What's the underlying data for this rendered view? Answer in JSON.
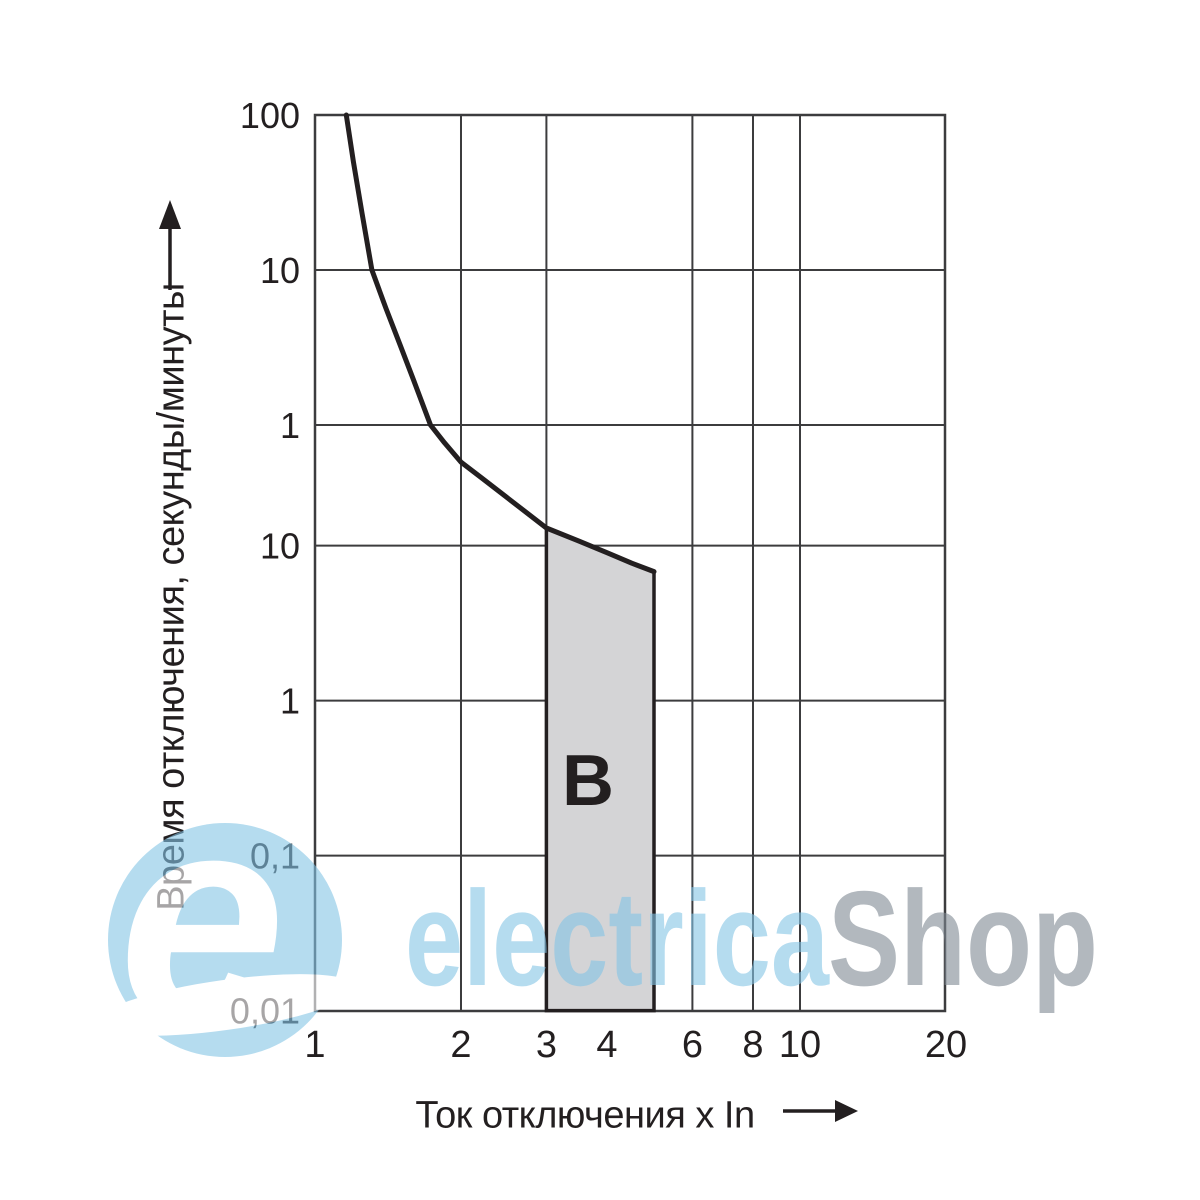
{
  "page": {
    "background": "#ffffff",
    "description": "Time-current trip characteristic curve, type B circuit breaker"
  },
  "colors": {
    "ink": "#231f20",
    "gridline": "#3c3c3e",
    "region_fill": "#d4d4d6",
    "watermark_blue": "#84c5e6",
    "watermark_gray": "#7f8993",
    "watermark_opacity": 0.6
  },
  "watermark": {
    "brand_first": "electrica",
    "brand_second": "Shop",
    "logo_letter": "e"
  },
  "chart_data": {
    "type": "line",
    "title": "",
    "xlabel": "Ток отключения x In",
    "ylabel": "Время отключения, секунды/минуты",
    "x_scale": "log",
    "y_scale": "log",
    "x_domain": [
      1,
      20
    ],
    "y_domain_seconds": [
      0.01,
      6000
    ],
    "grid": true,
    "x_ticks": [
      {
        "value": 1,
        "label": "1"
      },
      {
        "value": 2,
        "label": "2"
      },
      {
        "value": 3,
        "label": "3"
      },
      {
        "value": 4,
        "label": "4"
      },
      {
        "value": 6,
        "label": "6"
      },
      {
        "value": 8,
        "label": "8"
      },
      {
        "value": 10,
        "label": "10"
      },
      {
        "value": 20,
        "label": "20"
      }
    ],
    "y_ticks": [
      {
        "seconds": 6000,
        "label": "100",
        "unit": "minutes"
      },
      {
        "seconds": 600,
        "label": "10",
        "unit": "minutes"
      },
      {
        "seconds": 60,
        "label": "1",
        "unit": "minutes"
      },
      {
        "seconds": 10,
        "label": "10",
        "unit": "seconds"
      },
      {
        "seconds": 1,
        "label": "1",
        "unit": "seconds"
      },
      {
        "seconds": 0.1,
        "label": "0,1",
        "unit": "seconds"
      },
      {
        "seconds": 0.01,
        "label": "0,01",
        "unit": "seconds"
      }
    ],
    "x_gridlines": [
      2,
      3,
      6,
      8,
      10
    ],
    "y_gridlines_seconds": [
      600,
      60,
      10,
      1,
      0.1
    ],
    "series": [
      {
        "name": "thermal-trip-curve",
        "points_x_in_t_seconds": [
          [
            1.16,
            6000
          ],
          [
            1.2,
            3000
          ],
          [
            1.25,
            1400
          ],
          [
            1.31,
            600
          ],
          [
            1.4,
            340
          ],
          [
            1.5,
            195
          ],
          [
            1.6,
            115
          ],
          [
            1.73,
            60
          ],
          [
            1.85,
            46
          ],
          [
            2.0,
            34.6
          ],
          [
            2.2,
            27.5
          ],
          [
            2.5,
            20.2
          ],
          [
            3.0,
            13.0
          ],
          [
            3.5,
            10.7
          ],
          [
            4.0,
            9.0
          ],
          [
            4.5,
            7.7
          ],
          [
            5.0,
            6.8
          ]
        ]
      }
    ],
    "region": {
      "label": "B",
      "x_range": [
        3,
        5
      ],
      "top_points_x_in_t_seconds": [
        [
          3.0,
          13.0
        ],
        [
          3.5,
          10.7
        ],
        [
          4.0,
          9.0
        ],
        [
          4.5,
          7.7
        ],
        [
          5.0,
          6.8
        ]
      ],
      "bottom_seconds": 0.01
    }
  }
}
